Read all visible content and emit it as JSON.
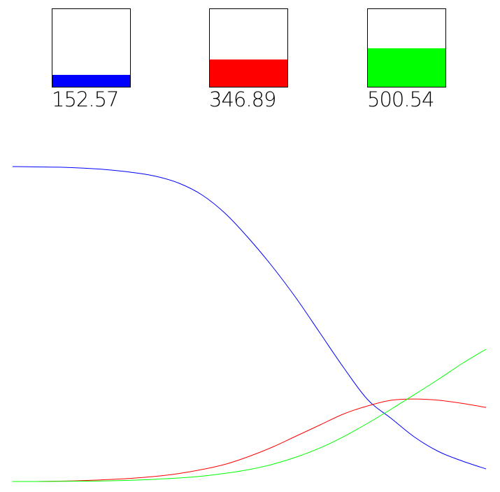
{
  "chart_data": {
    "type": "line",
    "gauges": [
      {
        "label": "152.57",
        "value": 152.57,
        "fill_fraction": 0.15,
        "color": "#0000ff"
      },
      {
        "label": "346.89",
        "value": 346.89,
        "fill_fraction": 0.35,
        "color": "#ff0000"
      },
      {
        "label": "500.54",
        "value": 500.54,
        "fill_fraction": 0.5,
        "color": "#00ff00"
      }
    ],
    "x": [
      0,
      0.05,
      0.1,
      0.15,
      0.2,
      0.25,
      0.3,
      0.35,
      0.4,
      0.45,
      0.5,
      0.55,
      0.6,
      0.65,
      0.7,
      0.75,
      0.8,
      0.85,
      0.9,
      0.95,
      1.0
    ],
    "series": [
      {
        "color": "#0000ff",
        "values": [
          1.0,
          0.999,
          0.998,
          0.995,
          0.99,
          0.982,
          0.97,
          0.948,
          0.91,
          0.85,
          0.77,
          0.68,
          0.58,
          0.47,
          0.36,
          0.26,
          0.2,
          0.14,
          0.095,
          0.065,
          0.04
        ]
      },
      {
        "color": "#ff0000",
        "values": [
          0.0,
          0.0,
          0.001,
          0.003,
          0.006,
          0.01,
          0.016,
          0.025,
          0.038,
          0.055,
          0.08,
          0.11,
          0.145,
          0.18,
          0.215,
          0.24,
          0.258,
          0.262,
          0.258,
          0.248,
          0.235
        ]
      },
      {
        "color": "#00ff00",
        "values": [
          0.0,
          0.0,
          0.0005,
          0.001,
          0.002,
          0.004,
          0.007,
          0.011,
          0.017,
          0.026,
          0.038,
          0.055,
          0.078,
          0.107,
          0.143,
          0.185,
          0.23,
          0.277,
          0.325,
          0.375,
          0.42
        ]
      }
    ],
    "xlim": [
      0,
      1
    ],
    "ylim": [
      0,
      1
    ],
    "grid": false,
    "title": "",
    "xlabel": "",
    "ylabel": ""
  }
}
